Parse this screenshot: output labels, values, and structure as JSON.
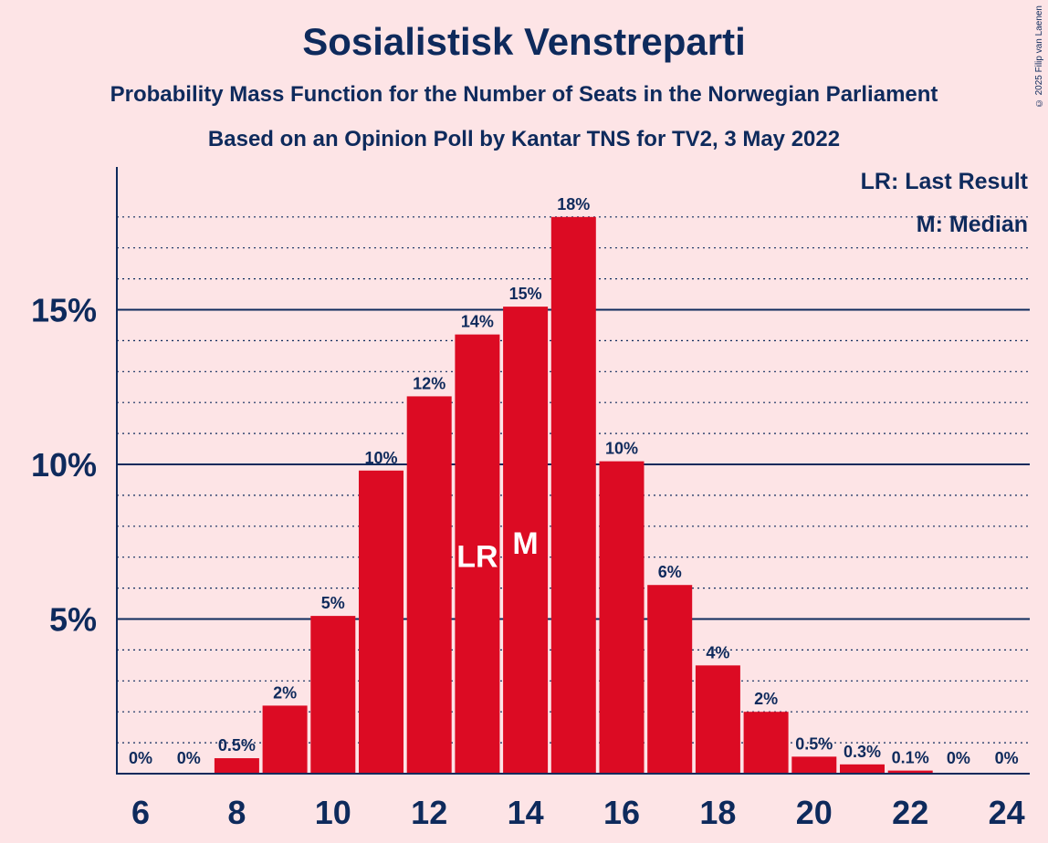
{
  "title": "Sosialistisk Venstreparti",
  "subtitle": "Probability Mass Function for the Number of Seats in the Norwegian Parliament",
  "subtitle2": "Based on an Opinion Poll by Kantar TNS for TV2, 3 May 2022",
  "copyright": "© 2025 Filip van Laenen",
  "legend": {
    "last_result": "LR: Last Result",
    "median": "M: Median"
  },
  "colors": {
    "background": "#fde4e6",
    "bar": "#dc0b23",
    "text": "#0e2a5c"
  },
  "chart_data": {
    "type": "bar",
    "x": [
      6,
      7,
      8,
      9,
      10,
      11,
      12,
      13,
      14,
      15,
      16,
      17,
      18,
      19,
      20,
      21,
      22,
      23,
      24
    ],
    "values": [
      0,
      0,
      0.5,
      2.2,
      5.1,
      9.8,
      12.2,
      14.2,
      15.1,
      18.0,
      10.1,
      6.1,
      3.5,
      2.0,
      0.55,
      0.3,
      0.1,
      0,
      0
    ],
    "data_labels": [
      "0%",
      "0%",
      "0.5%",
      "2%",
      "5%",
      "10%",
      "12%",
      "14%",
      "15%",
      "18%",
      "10%",
      "6%",
      "4%",
      "2%",
      "0.5%",
      "0.3%",
      "0.1%",
      "0%",
      "0%"
    ],
    "xticks": [
      "6",
      "8",
      "10",
      "12",
      "14",
      "16",
      "18",
      "20",
      "22",
      "24"
    ],
    "yticks": [
      {
        "value": 5,
        "label": "5%"
      },
      {
        "value": 10,
        "label": "10%"
      },
      {
        "value": 15,
        "label": "15%"
      }
    ],
    "minor_grid_step": 1,
    "ylim": [
      0,
      19
    ],
    "last_result": 13,
    "last_result_label": "LR",
    "median": 14,
    "median_label": "M",
    "grid": true,
    "legend_position": "top-right"
  }
}
